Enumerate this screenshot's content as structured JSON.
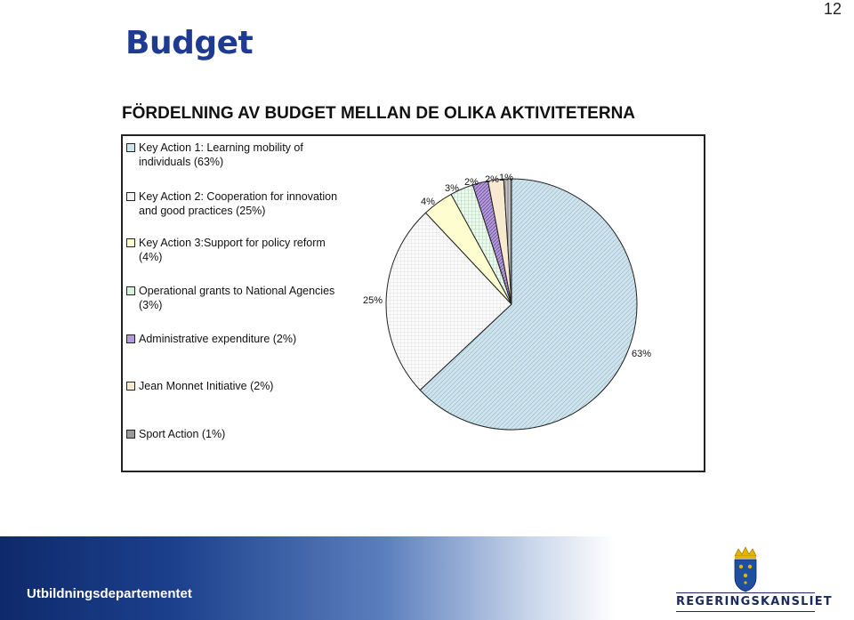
{
  "page": {
    "number": "12",
    "title": "Budget",
    "subtitle": "FÖRDELNING AV BUDGET MELLAN DE OLIKA AKTIVITETERNA"
  },
  "footer": {
    "ministry": "Utbildningsdepartementet",
    "logo_text": "REGERINGSKANSLIET"
  },
  "colors": {
    "title": "#1f3a93",
    "footer_dark": "#0e2a6b"
  },
  "chart_data": {
    "type": "pie",
    "title": "",
    "legend_position": "left",
    "slices": [
      {
        "label": "Key Action 1: Learning mobility of individuals (63%)",
        "value": 63,
        "data_label": "63%",
        "color": "#cfe3ec",
        "pattern": "diag-dots"
      },
      {
        "label": "Key Action 2: Cooperation for innovation and good practices (25%)",
        "value": 25,
        "data_label": "25%",
        "color": "#f5f5f5",
        "pattern": "grid"
      },
      {
        "label": "Key Action 3:Support for policy reform (4%)",
        "value": 4,
        "data_label": "4%",
        "color": "#fdfdd0",
        "pattern": "none"
      },
      {
        "label": "Operational grants to National Agencies (3%)",
        "value": 3,
        "data_label": "3%",
        "color": "#d8f0dc",
        "pattern": "grid-green"
      },
      {
        "label": "Administrative expenditure (2%)",
        "value": 2,
        "data_label": "2%",
        "color": "#b49ad6",
        "pattern": "diag"
      },
      {
        "label": "Jean Monnet Initiative (2%)",
        "value": 2,
        "data_label": "2%",
        "color": "#f8ead0",
        "pattern": "none"
      },
      {
        "label": "Sport Action (1%)",
        "value": 1,
        "data_label": "1%",
        "color": "#9a9a9a",
        "pattern": "vert"
      }
    ]
  }
}
